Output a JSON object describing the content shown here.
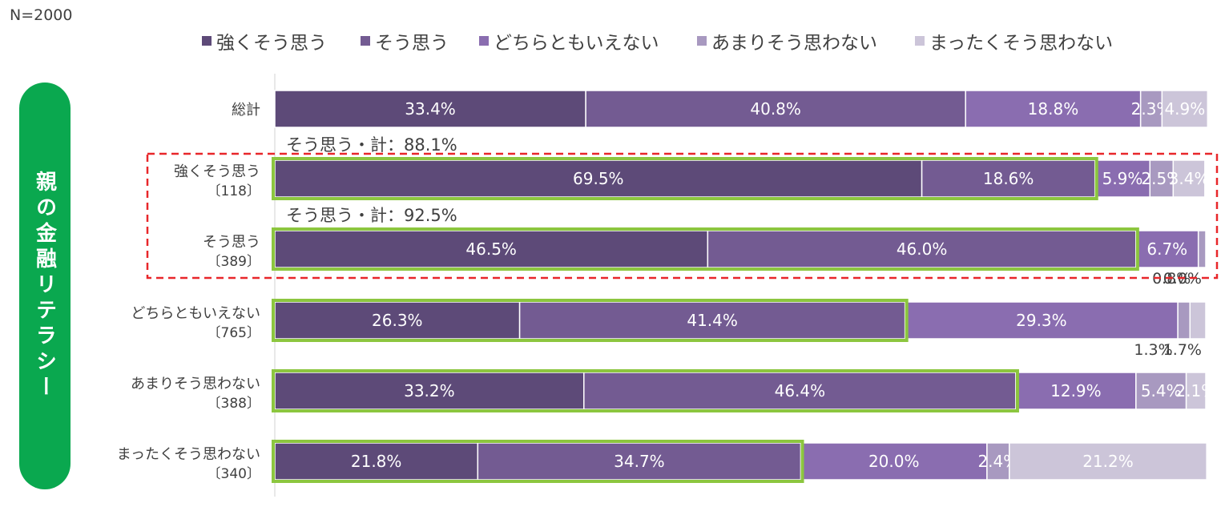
{
  "sample_size": "N=2000",
  "side_label": "親の金融リテラシー",
  "colors": [
    "#5d4a78",
    "#735b92",
    "#8a6db0",
    "#a899c0",
    "#ccc5d9"
  ],
  "highlight_color": "#8cc63f",
  "dashed_box_color": "#e8272a",
  "chart_data": {
    "type": "bar",
    "orientation": "horizontal",
    "stacked": "100%",
    "xlim": [
      0,
      100
    ],
    "unit": "%",
    "legend": [
      "強くそう思う",
      "そう思う",
      "どちらともいえない",
      "あまりそう思わない",
      "まったくそう思わない"
    ],
    "categories": [
      {
        "label": "総計",
        "n": ""
      },
      {
        "label": "強くそう思う",
        "n": "〔118〕"
      },
      {
        "label": "そう思う",
        "n": "〔389〕"
      },
      {
        "label": "どちらともいえない",
        "n": "〔765〕"
      },
      {
        "label": "あまりそう思わない",
        "n": "〔388〕"
      },
      {
        "label": "まったくそう思わない",
        "n": "〔340〕"
      }
    ],
    "rows": [
      [
        33.4,
        40.8,
        18.8,
        2.3,
        4.9
      ],
      [
        69.5,
        18.6,
        5.9,
        2.5,
        3.4
      ],
      [
        46.5,
        46.0,
        6.7,
        0.8,
        0.0
      ],
      [
        26.3,
        41.4,
        29.3,
        1.3,
        1.7
      ],
      [
        33.2,
        46.4,
        12.9,
        5.4,
        2.1
      ],
      [
        21.8,
        34.7,
        20.0,
        2.4,
        21.2
      ]
    ],
    "annotations": [
      {
        "row": 1,
        "text": "そう思う・計：88.1%"
      },
      {
        "row": 2,
        "text": "そう思う・計：92.5%"
      }
    ],
    "highlighted_segments": [
      0,
      1
    ]
  }
}
